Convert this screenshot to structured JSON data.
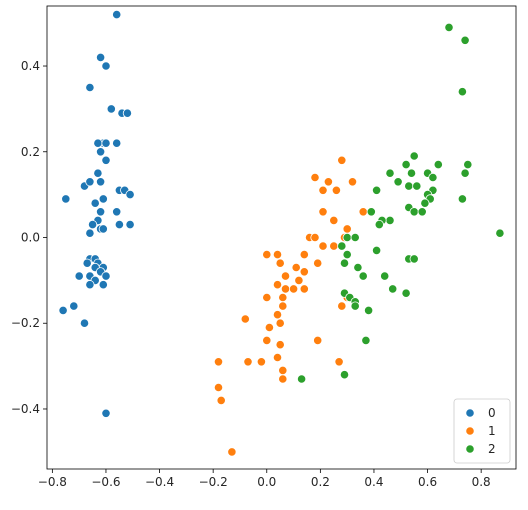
{
  "chart_data": {
    "type": "scatter",
    "title": "",
    "xlabel": "",
    "ylabel": "",
    "xlim": [
      -0.82,
      0.93
    ],
    "ylim": [
      -0.54,
      0.54
    ],
    "xticks": [
      -0.8,
      -0.6,
      -0.4,
      -0.2,
      0.0,
      0.2,
      0.4,
      0.6,
      0.8
    ],
    "xtick_labels": [
      "−0.8",
      "−0.6",
      "−0.4",
      "−0.2",
      "0.0",
      "0.2",
      "0.4",
      "0.6",
      "0.8"
    ],
    "yticks": [
      -0.4,
      -0.2,
      0.0,
      0.2,
      0.4
    ],
    "ytick_labels": [
      "−0.4",
      "−0.2",
      "0.0",
      "0.2",
      "0.4"
    ],
    "grid": false,
    "legend_position": "lower-right",
    "series": [
      {
        "name": "0",
        "color": "#1f77b4",
        "points": [
          [
            -0.56,
            0.52
          ],
          [
            -0.62,
            0.42
          ],
          [
            -0.6,
            0.4
          ],
          [
            -0.66,
            0.35
          ],
          [
            -0.58,
            0.3
          ],
          [
            -0.54,
            0.29
          ],
          [
            -0.52,
            0.29
          ],
          [
            -0.61,
            0.22
          ],
          [
            -0.63,
            0.22
          ],
          [
            -0.6,
            0.22
          ],
          [
            -0.56,
            0.22
          ],
          [
            -0.62,
            0.2
          ],
          [
            -0.6,
            0.18
          ],
          [
            -0.63,
            0.15
          ],
          [
            -0.62,
            0.13
          ],
          [
            -0.68,
            0.12
          ],
          [
            -0.66,
            0.13
          ],
          [
            -0.55,
            0.11
          ],
          [
            -0.53,
            0.11
          ],
          [
            -0.51,
            0.1
          ],
          [
            -0.75,
            0.09
          ],
          [
            -0.61,
            0.09
          ],
          [
            -0.64,
            0.08
          ],
          [
            -0.62,
            0.06
          ],
          [
            -0.56,
            0.06
          ],
          [
            -0.63,
            0.04
          ],
          [
            -0.65,
            0.03
          ],
          [
            -0.62,
            0.02
          ],
          [
            -0.66,
            0.01
          ],
          [
            -0.55,
            0.03
          ],
          [
            -0.51,
            0.03
          ],
          [
            -0.61,
            0.02
          ],
          [
            -0.66,
            -0.05
          ],
          [
            -0.64,
            -0.05
          ],
          [
            -0.67,
            -0.06
          ],
          [
            -0.63,
            -0.06
          ],
          [
            -0.61,
            -0.07
          ],
          [
            -0.64,
            -0.07
          ],
          [
            -0.62,
            -0.08
          ],
          [
            -0.7,
            -0.09
          ],
          [
            -0.66,
            -0.09
          ],
          [
            -0.6,
            -0.09
          ],
          [
            -0.64,
            -0.1
          ],
          [
            -0.61,
            -0.11
          ],
          [
            -0.66,
            -0.11
          ],
          [
            -0.72,
            -0.16
          ],
          [
            -0.76,
            -0.17
          ],
          [
            -0.68,
            -0.2
          ],
          [
            -0.6,
            -0.41
          ]
        ]
      },
      {
        "name": "1",
        "color": "#ff7f0e",
        "points": [
          [
            0.28,
            0.18
          ],
          [
            0.18,
            0.14
          ],
          [
            0.23,
            0.13
          ],
          [
            0.32,
            0.13
          ],
          [
            0.26,
            0.11
          ],
          [
            0.21,
            0.11
          ],
          [
            0.36,
            0.06
          ],
          [
            0.21,
            0.06
          ],
          [
            0.25,
            0.04
          ],
          [
            0.3,
            0.02
          ],
          [
            0.16,
            0.0
          ],
          [
            0.18,
            0.0
          ],
          [
            0.29,
            0.0
          ],
          [
            0.21,
            -0.02
          ],
          [
            0.25,
            -0.02
          ],
          [
            0.0,
            -0.04
          ],
          [
            0.04,
            -0.04
          ],
          [
            0.14,
            -0.04
          ],
          [
            0.05,
            -0.06
          ],
          [
            0.19,
            -0.06
          ],
          [
            0.11,
            -0.07
          ],
          [
            0.14,
            -0.08
          ],
          [
            0.07,
            -0.09
          ],
          [
            0.12,
            -0.1
          ],
          [
            0.04,
            -0.11
          ],
          [
            0.1,
            -0.12
          ],
          [
            0.07,
            -0.12
          ],
          [
            0.14,
            -0.12
          ],
          [
            0.06,
            -0.14
          ],
          [
            0.0,
            -0.14
          ],
          [
            0.06,
            -0.16
          ],
          [
            0.3,
            -0.14
          ],
          [
            0.28,
            -0.16
          ],
          [
            0.04,
            -0.18
          ],
          [
            -0.08,
            -0.19
          ],
          [
            0.05,
            -0.2
          ],
          [
            0.01,
            -0.21
          ],
          [
            0.0,
            -0.24
          ],
          [
            0.19,
            -0.24
          ],
          [
            0.05,
            -0.25
          ],
          [
            0.04,
            -0.28
          ],
          [
            -0.07,
            -0.29
          ],
          [
            -0.02,
            -0.29
          ],
          [
            0.27,
            -0.29
          ],
          [
            -0.18,
            -0.29
          ],
          [
            0.06,
            -0.31
          ],
          [
            0.06,
            -0.33
          ],
          [
            -0.18,
            -0.35
          ],
          [
            -0.17,
            -0.38
          ],
          [
            -0.13,
            -0.5
          ]
        ]
      },
      {
        "name": "2",
        "color": "#2ca02c",
        "points": [
          [
            0.68,
            0.49
          ],
          [
            0.74,
            0.46
          ],
          [
            0.73,
            0.34
          ],
          [
            0.55,
            0.19
          ],
          [
            0.64,
            0.17
          ],
          [
            0.75,
            0.17
          ],
          [
            0.52,
            0.17
          ],
          [
            0.46,
            0.15
          ],
          [
            0.54,
            0.15
          ],
          [
            0.6,
            0.15
          ],
          [
            0.62,
            0.14
          ],
          [
            0.74,
            0.15
          ],
          [
            0.49,
            0.13
          ],
          [
            0.53,
            0.12
          ],
          [
            0.56,
            0.12
          ],
          [
            0.41,
            0.11
          ],
          [
            0.62,
            0.11
          ],
          [
            0.6,
            0.1
          ],
          [
            0.61,
            0.09
          ],
          [
            0.73,
            0.09
          ],
          [
            0.59,
            0.08
          ],
          [
            0.53,
            0.07
          ],
          [
            0.55,
            0.06
          ],
          [
            0.58,
            0.06
          ],
          [
            0.39,
            0.06
          ],
          [
            0.46,
            0.04
          ],
          [
            0.43,
            0.04
          ],
          [
            0.42,
            0.03
          ],
          [
            0.87,
            0.01
          ],
          [
            0.3,
            0.0
          ],
          [
            0.33,
            0.0
          ],
          [
            0.28,
            -0.02
          ],
          [
            0.41,
            -0.03
          ],
          [
            0.3,
            -0.04
          ],
          [
            0.29,
            -0.06
          ],
          [
            0.53,
            -0.05
          ],
          [
            0.55,
            -0.05
          ],
          [
            0.34,
            -0.07
          ],
          [
            0.44,
            -0.09
          ],
          [
            0.36,
            -0.09
          ],
          [
            0.47,
            -0.12
          ],
          [
            0.52,
            -0.13
          ],
          [
            0.29,
            -0.13
          ],
          [
            0.31,
            -0.14
          ],
          [
            0.33,
            -0.15
          ],
          [
            0.33,
            -0.16
          ],
          [
            0.38,
            -0.17
          ],
          [
            0.37,
            -0.24
          ],
          [
            0.29,
            -0.32
          ],
          [
            0.13,
            -0.33
          ]
        ]
      }
    ]
  }
}
